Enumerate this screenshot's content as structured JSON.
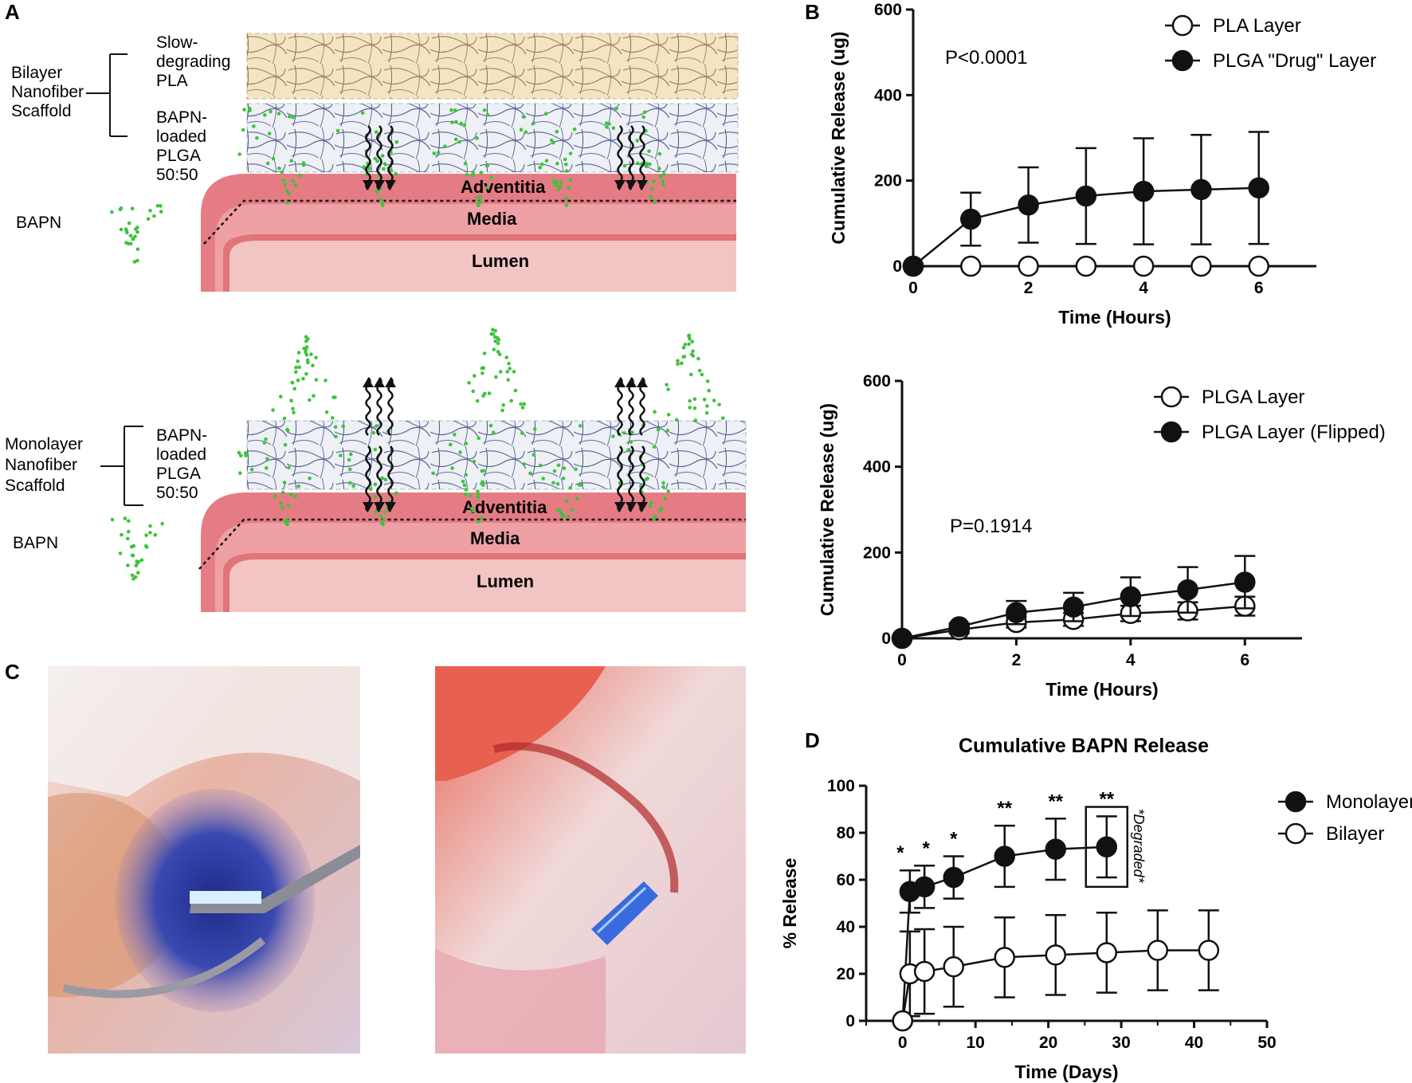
{
  "panel_labels": {
    "a": "A",
    "b": "B",
    "c": "C",
    "d": "D"
  },
  "schematic_top": {
    "group_label": "Bilayer\nNanofiber\nScaffold",
    "layer1_label": "Slow-\ndegrading\nPLA",
    "layer2_label": "BAPN-\nloaded\nPLGA\n50:50",
    "drug_label": "BAPN",
    "tissue": {
      "adventitia": "Adventitia",
      "media": "Media",
      "lumen": "Lumen"
    }
  },
  "schematic_bottom": {
    "group_label": "Monolayer\nNanofiber\nScaffold",
    "layer_label": "BAPN-\nloaded\nPLGA\n50:50",
    "drug_label": "BAPN",
    "tissue": {
      "adventitia": "Adventitia",
      "media": "Media",
      "lumen": "Lumen"
    }
  },
  "photos": {
    "left_icon": "surgical-photo-blue-scaffold",
    "right_icon": "surgical-photo-scaffold-on-vessel"
  },
  "colors": {
    "drug_dots": "#3cc43c",
    "pla_layer": "#f3e4c4",
    "plga_layer": "#eef0f6",
    "adventitia": "#e57c84",
    "media": "#eea0a4",
    "lumen": "#f2c4c4"
  },
  "chart_data": [
    {
      "panel": "B-top",
      "type": "line",
      "xlabel": "Time (Hours)",
      "ylabel": "Cumulative Release (ug)",
      "x_ticks": [
        "0",
        "2",
        "4",
        "6"
      ],
      "y_ticks": [
        "0",
        "200",
        "400",
        "600"
      ],
      "xlim": [
        0,
        7
      ],
      "ylim": [
        0,
        600
      ],
      "annotation": "P<0.0001",
      "series": [
        {
          "name": "PLA Layer",
          "marker": "open",
          "x": [
            0,
            1,
            2,
            3,
            4,
            5,
            6
          ],
          "y": [
            0,
            0,
            0,
            0,
            0,
            0,
            0
          ],
          "err": [
            0,
            0,
            0,
            0,
            0,
            0,
            0
          ]
        },
        {
          "name": "PLGA \"Drug\" Layer",
          "marker": "filled",
          "x": [
            0,
            1,
            2,
            3,
            4,
            5,
            6
          ],
          "y": [
            0,
            110,
            143,
            164,
            175,
            179,
            183
          ],
          "err": [
            0,
            62,
            88,
            112,
            124,
            128,
            131
          ]
        }
      ]
    },
    {
      "panel": "B-bottom",
      "type": "line",
      "xlabel": "Time (Hours)",
      "ylabel": "Cumulative Release (ug)",
      "x_ticks": [
        "0",
        "2",
        "4",
        "6"
      ],
      "y_ticks": [
        "0",
        "200",
        "400",
        "600"
      ],
      "xlim": [
        0,
        7
      ],
      "ylim": [
        0,
        600
      ],
      "annotation": "P=0.1914",
      "series": [
        {
          "name": "PLGA Layer",
          "marker": "open",
          "x": [
            0,
            1,
            2,
            3,
            4,
            5,
            6
          ],
          "y": [
            0,
            20,
            37,
            44,
            58,
            64,
            75
          ],
          "err": [
            0,
            8,
            12,
            15,
            18,
            20,
            22
          ]
        },
        {
          "name": "PLGA Layer (Flipped)",
          "marker": "filled",
          "x": [
            0,
            1,
            2,
            3,
            4,
            5,
            6
          ],
          "y": [
            0,
            27,
            60,
            73,
            97,
            113,
            131
          ],
          "err": [
            0,
            8,
            27,
            33,
            45,
            53,
            61
          ]
        }
      ]
    },
    {
      "panel": "D",
      "type": "line",
      "title": "Cumulative BAPN Release",
      "xlabel": "Time (Days)",
      "ylabel": "% Release",
      "x_ticks": [
        "0",
        "10",
        "20",
        "30",
        "40",
        "50"
      ],
      "y_ticks": [
        "0",
        "20",
        "40",
        "60",
        "80",
        "100"
      ],
      "xlim": [
        -5,
        50
      ],
      "ylim": [
        0,
        100
      ],
      "series": [
        {
          "name": "Monolayer",
          "marker": "filled",
          "x": [
            0,
            1,
            3,
            7,
            14,
            21,
            28
          ],
          "y": [
            0,
            55,
            57,
            61,
            70,
            73,
            74
          ],
          "err": [
            0,
            9,
            9,
            9,
            13,
            13,
            13
          ]
        },
        {
          "name": "Bilayer",
          "marker": "open",
          "x": [
            0,
            1,
            3,
            7,
            14,
            21,
            28,
            35,
            42
          ],
          "y": [
            0,
            20,
            21,
            23,
            27,
            28,
            29,
            30,
            30
          ],
          "err": [
            0,
            18,
            18,
            17,
            17,
            17,
            17,
            17,
            17
          ]
        }
      ],
      "significance": [
        {
          "x": 1,
          "label": "*"
        },
        {
          "x": 3,
          "label": "*"
        },
        {
          "x": 7,
          "label": "*"
        },
        {
          "x": 14,
          "label": "**"
        },
        {
          "x": 21,
          "label": "**"
        },
        {
          "x": 28,
          "label": "**"
        }
      ],
      "note": "*Degraded*"
    }
  ]
}
